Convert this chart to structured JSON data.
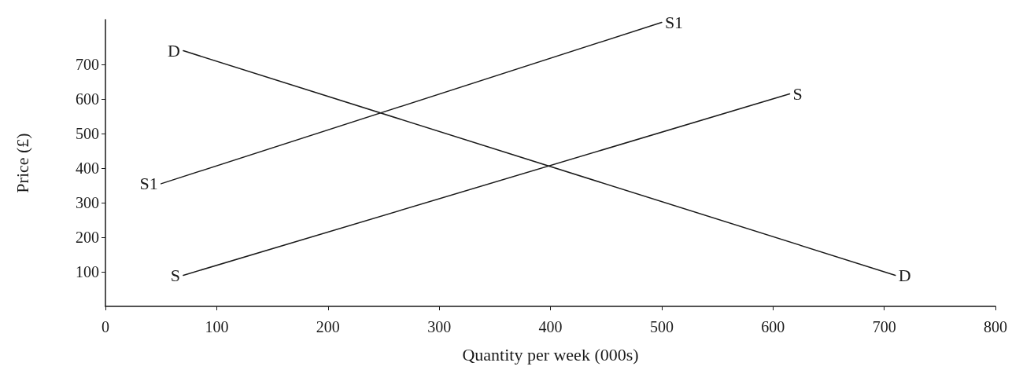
{
  "chart_data": {
    "type": "line",
    "xlabel": "Quantity per week (000s)",
    "ylabel": "Price (£)",
    "series": [
      {
        "name": "D",
        "color": "#1a1a1a",
        "x": [
          70,
          710
        ],
        "values": [
          740,
          90
        ]
      },
      {
        "name": "S",
        "color": "#1a1a1a",
        "x": [
          70,
          615
        ],
        "values": [
          90,
          615
        ]
      },
      {
        "name": "S1",
        "color": "#1a1a1a",
        "x": [
          50,
          500
        ],
        "values": [
          355,
          822
        ]
      }
    ],
    "xlim": [
      0,
      800
    ],
    "xticks": [
      0,
      100,
      200,
      300,
      400,
      500,
      600,
      700,
      800
    ],
    "ylim": [
      0,
      830
    ],
    "yticks": [
      100,
      200,
      300,
      400,
      500,
      600,
      700
    ],
    "grid": false,
    "legend": false,
    "marker": "none",
    "line_style": "solid"
  }
}
